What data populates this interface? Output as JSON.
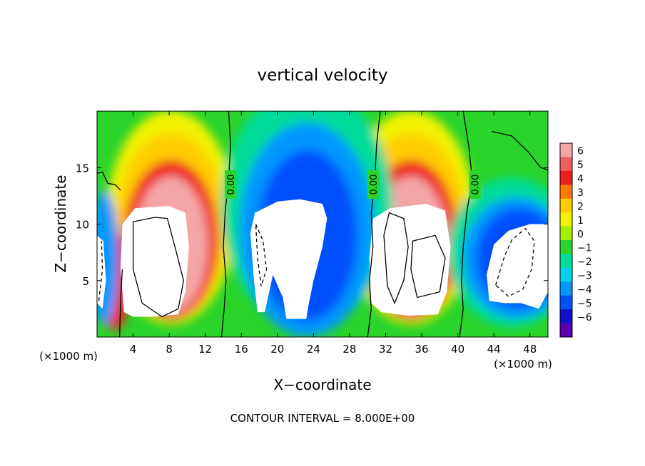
{
  "chart_data": {
    "type": "heatmap",
    "title": "vertical velocity",
    "xlabel": "X−coordinate",
    "ylabel": "Z−coordinate",
    "x_unit_left": "(×1000 m)",
    "x_unit_right": "(×1000 m)",
    "footer": "CONTOUR INTERVAL = 8.000E+00",
    "xlim": [
      0,
      50
    ],
    "ylim": [
      0,
      20
    ],
    "x_ticks": [
      4,
      8,
      12,
      16,
      20,
      24,
      28,
      32,
      36,
      40,
      44,
      48
    ],
    "y_ticks": [
      5,
      10,
      15
    ],
    "colorbar": {
      "ticks": [
        6,
        5,
        4,
        3,
        2,
        1,
        0,
        -1,
        -2,
        -3,
        -4,
        -5,
        -6
      ],
      "tick_labels": [
        "6",
        "5",
        "4",
        "3",
        "2",
        "1",
        "0",
        "−1",
        "−2",
        "−3",
        "−4",
        "−5",
        "−6"
      ],
      "colors": [
        "#f4a6a6",
        "#f25d5d",
        "#ee1f1f",
        "#ff7a00",
        "#ffcc00",
        "#f2f200",
        "#a8ee00",
        "#2ad42a",
        "#00dc9a",
        "#00d2ee",
        "#0096ff",
        "#0050ff",
        "#1010c8",
        "#5a00b0"
      ]
    },
    "contour_labels": [
      {
        "x": 14.8,
        "y": 13.5,
        "text": "0.00"
      },
      {
        "x": 30.6,
        "y": 13.5,
        "text": "0.00"
      },
      {
        "x": 41.9,
        "y": 13.5,
        "text": "0.00"
      }
    ]
  }
}
